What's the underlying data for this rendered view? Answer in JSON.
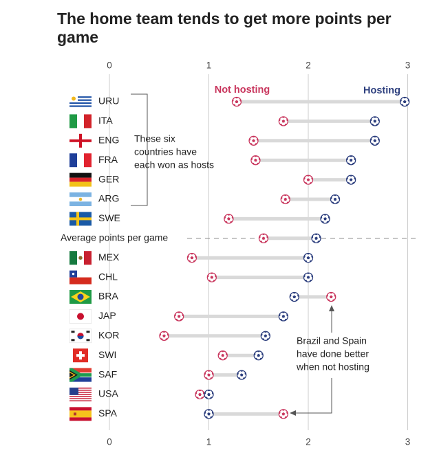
{
  "title": "The home team tends to get more points per game",
  "colors": {
    "not_hosting": "#c9375e",
    "hosting": "#2d3f7e",
    "bar": "#d9d9d9",
    "grid": "#cccccc"
  },
  "chart_data": {
    "type": "dumbbell",
    "title": "The home team tends to get more points per game",
    "xlim": [
      0,
      3
    ],
    "x_ticks": [
      0,
      1,
      2,
      3
    ],
    "series": [
      {
        "name": "Not hosting",
        "color": "#c9375e"
      },
      {
        "name": "Hosting",
        "color": "#2d3f7e"
      }
    ],
    "rows": [
      {
        "label": "URU",
        "not_hosting": 1.28,
        "hosting": 2.97
      },
      {
        "label": "ITA",
        "not_hosting": 1.75,
        "hosting": 2.67
      },
      {
        "label": "ENG",
        "not_hosting": 1.45,
        "hosting": 2.67
      },
      {
        "label": "FRA",
        "not_hosting": 1.47,
        "hosting": 2.43
      },
      {
        "label": "GER",
        "not_hosting": 2.0,
        "hosting": 2.43
      },
      {
        "label": "ARG",
        "not_hosting": 1.77,
        "hosting": 2.27
      },
      {
        "label": "SWE",
        "not_hosting": 1.2,
        "hosting": 2.17
      },
      {
        "label": "Average points per game",
        "not_hosting": 1.55,
        "hosting": 2.08,
        "is_average": true
      },
      {
        "label": "MEX",
        "not_hosting": 0.83,
        "hosting": 2.0
      },
      {
        "label": "CHL",
        "not_hosting": 1.03,
        "hosting": 2.0
      },
      {
        "label": "BRA",
        "not_hosting": 2.23,
        "hosting": 1.86
      },
      {
        "label": "JAP",
        "not_hosting": 0.7,
        "hosting": 1.75
      },
      {
        "label": "KOR",
        "not_hosting": 0.55,
        "hosting": 1.57
      },
      {
        "label": "SWI",
        "not_hosting": 1.14,
        "hosting": 1.5
      },
      {
        "label": "SAF",
        "not_hosting": 1.0,
        "hosting": 1.33
      },
      {
        "label": "USA",
        "not_hosting": 0.91,
        "hosting": 1.0
      },
      {
        "label": "SPA",
        "not_hosting": 1.75,
        "hosting": 1.0
      }
    ],
    "annotations": [
      "These six countries have each won as hosts",
      "Brazil and Spain have done better when not hosting"
    ]
  },
  "annotations": {
    "winners": [
      "These six",
      "countries have",
      "each won as hosts"
    ],
    "brazil_spain": [
      "Brazil and Spain",
      "have done better",
      "when not hosting"
    ]
  },
  "flags": {
    "URU": "uruguay-flag",
    "ITA": "italy-flag",
    "ENG": "england-flag",
    "FRA": "france-flag",
    "GER": "germany-flag",
    "ARG": "argentina-flag",
    "SWE": "sweden-flag",
    "MEX": "mexico-flag",
    "CHL": "chile-flag",
    "BRA": "brazil-flag",
    "JAP": "japan-flag",
    "KOR": "south-korea-flag",
    "SWI": "switzerland-flag",
    "SAF": "south-africa-flag",
    "USA": "usa-flag",
    "SPA": "spain-flag"
  }
}
